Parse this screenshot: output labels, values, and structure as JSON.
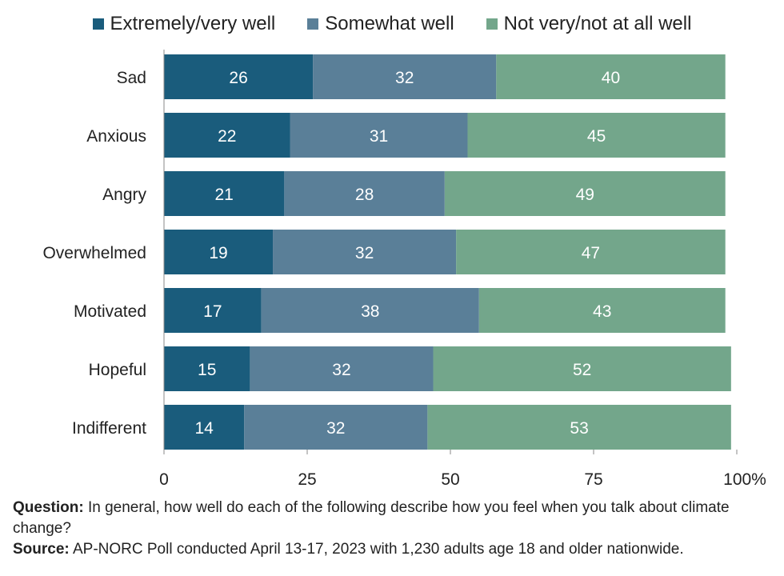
{
  "chart_data": {
    "type": "bar",
    "orientation": "horizontal",
    "stacked": true,
    "categories": [
      "Sad",
      "Anxious",
      "Angry",
      "Overwhelmed",
      "Motivated",
      "Hopeful",
      "Indifferent"
    ],
    "series": [
      {
        "name": "Extremely/very well",
        "color": "#1a5c7c",
        "values": [
          26,
          22,
          21,
          19,
          17,
          15,
          14
        ]
      },
      {
        "name": "Somewhat well",
        "color": "#5a7f98",
        "values": [
          32,
          31,
          28,
          32,
          38,
          32,
          32
        ]
      },
      {
        "name": "Not very/not at all well",
        "color": "#73a68b",
        "values": [
          40,
          45,
          49,
          47,
          43,
          52,
          53
        ]
      }
    ],
    "xlim": [
      0,
      100
    ],
    "xticks": [
      "0",
      "25",
      "50",
      "75",
      "100%"
    ],
    "legend_position": "top",
    "grid": false
  },
  "notes": {
    "question_label": "Question:",
    "question_text": " In general, how well do each of the following describe how you feel when you talk about climate change?",
    "source_label": "Source:",
    "source_text": " AP-NORC Poll conducted April 13-17, 2023 with 1,230 adults age 18 and older nationwide."
  }
}
